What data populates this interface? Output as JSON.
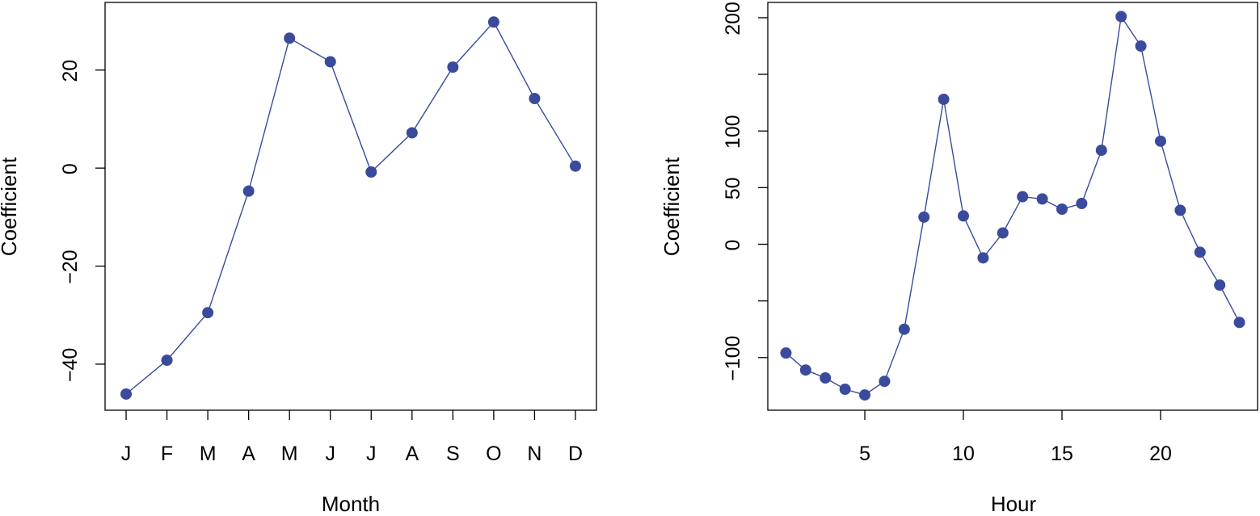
{
  "chart_data": [
    {
      "type": "line",
      "xlabel": "Month",
      "ylabel": "Coefficient",
      "categories": [
        "J",
        "F",
        "M",
        "A",
        "M",
        "J",
        "J",
        "A",
        "S",
        "O",
        "N",
        "D"
      ],
      "values": [
        -46.1,
        -39.2,
        -29.5,
        -4.7,
        26.5,
        21.7,
        -0.8,
        7.2,
        20.6,
        29.8,
        14.2,
        0.4
      ],
      "yticks": [
        -40,
        -20,
        0,
        20
      ],
      "ytick_labels": [
        "−40",
        "−20",
        "0",
        "20"
      ],
      "ylim": [
        -49.4,
        33.8
      ],
      "grid": false,
      "colors": {
        "series": "#3a4a9c",
        "axes": "#000000"
      }
    },
    {
      "type": "line",
      "xlabel": "Hour",
      "ylabel": "Coefficient",
      "x": [
        1,
        2,
        3,
        4,
        5,
        6,
        7,
        8,
        9,
        10,
        11,
        12,
        13,
        14,
        15,
        16,
        17,
        18,
        19,
        20,
        21,
        22,
        23,
        24
      ],
      "values": [
        -96,
        -111,
        -118,
        -128,
        -133,
        -121,
        -75,
        24,
        128,
        25,
        -12,
        10,
        42,
        40,
        31,
        36,
        83,
        201,
        175,
        91,
        30,
        -7,
        -36,
        -69
      ],
      "xticks": [
        5,
        10,
        15,
        20
      ],
      "xtick_labels": [
        "5",
        "10",
        "15",
        "20"
      ],
      "yticks": [
        -100,
        -50,
        0,
        50,
        100,
        150,
        200
      ],
      "ytick_labels": [
        "−100",
        "",
        "0",
        "50",
        "100",
        "",
        "200"
      ],
      "xlim": [
        0.08,
        24.92
      ],
      "ylim": [
        -146.5,
        213.5
      ],
      "grid": false,
      "colors": {
        "series": "#3a4a9c",
        "axes": "#000000"
      }
    }
  ]
}
